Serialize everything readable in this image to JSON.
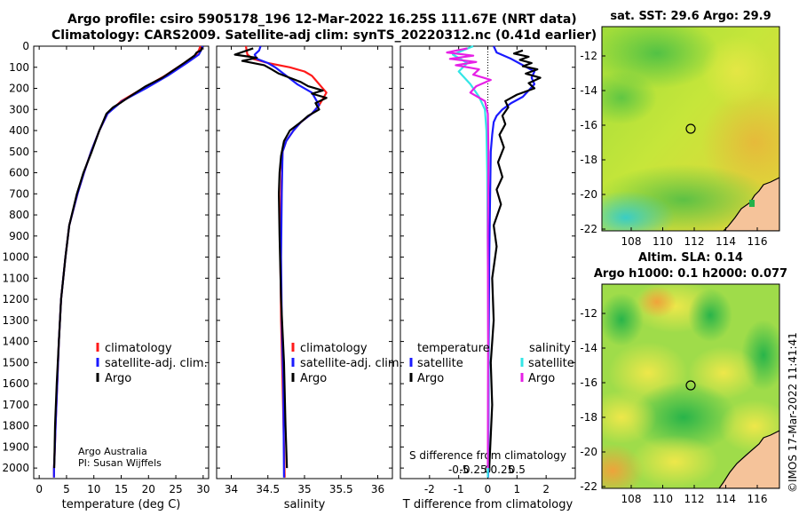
{
  "title_line1": "Argo profile: csiro 5905178_196 12-Mar-2022 16.25S 111.67E (NRT data)",
  "title_line2": "Climatology: CARS2009. Satellite-adj clim: synTS_20220312.nc (0.41d earlier)",
  "side_note": "©IMOS 17-Mar-2022 11:41:41",
  "colors": {
    "climatology": "#ff1a1a",
    "satellite": "#1a1aff",
    "argo": "#000000",
    "sal_satellite": "#33e6e6",
    "sal_argo": "#e620e6"
  },
  "chart_data": [
    {
      "id": "temp",
      "type": "line",
      "xlabel": "temperature (deg C)",
      "xlim": [
        -1,
        31
      ],
      "ylim": [
        2050,
        0
      ],
      "xticks": [
        0,
        5,
        10,
        15,
        20,
        25,
        30
      ],
      "xtick_labels": [
        "0",
        "5",
        "10",
        "15",
        "20",
        "25",
        "30"
      ],
      "yticks": [
        0,
        100,
        200,
        300,
        400,
        500,
        600,
        700,
        800,
        900,
        1000,
        1100,
        1200,
        1300,
        1400,
        1500,
        1600,
        1700,
        1800,
        1900,
        2000
      ],
      "ytick_labels": [
        "0",
        "100",
        "200",
        "300",
        "400",
        "500",
        "600",
        "700",
        "800",
        "900",
        "1000",
        "1100",
        "1200",
        "1300",
        "1400",
        "1500",
        "1600",
        "1700",
        "1800",
        "1900",
        "2000"
      ],
      "legend": [
        "climatology",
        "satellite-adj. clim.",
        "Argo"
      ],
      "annotation": [
        "Argo Australia",
        "PI: Susan Wijffels"
      ],
      "series": [
        {
          "name": "climatology",
          "color_key": "climatology",
          "x": [
            29.5,
            29.2,
            28.7,
            26.5,
            23,
            19,
            15,
            12.5,
            11,
            9.5,
            8.2,
            7,
            5.5,
            4.8,
            4,
            3.6,
            3.3,
            3,
            2.8,
            2.7,
            2.7
          ],
          "y": [
            0,
            20,
            40,
            80,
            140,
            200,
            260,
            320,
            400,
            500,
            600,
            700,
            850,
            1000,
            1200,
            1400,
            1600,
            1800,
            1950,
            2000,
            2045
          ]
        },
        {
          "name": "satellite-adj. clim.",
          "color_key": "satellite",
          "x": [
            29.9,
            29.6,
            29.2,
            27,
            23.5,
            19.5,
            15.2,
            12.5,
            11,
            9.5,
            8.2,
            7,
            5.5,
            4.8,
            4,
            3.6,
            3.3,
            3,
            2.8,
            2.7,
            2.7
          ],
          "y": [
            0,
            20,
            40,
            80,
            140,
            200,
            260,
            320,
            400,
            500,
            600,
            700,
            850,
            1000,
            1200,
            1400,
            1600,
            1800,
            1950,
            2000,
            2045
          ]
        },
        {
          "name": "Argo",
          "color_key": "argo",
          "x": [
            29.8,
            29.6,
            28.8,
            28.4,
            26.5,
            22.5,
            19.5,
            16.5,
            14.8,
            13.5,
            12.3,
            11,
            9.6,
            8.1,
            6.9,
            5.5,
            4.8,
            4,
            3.6,
            3.2,
            2.9,
            2.75
          ],
          "y": [
            5,
            20,
            30,
            45,
            80,
            150,
            190,
            240,
            270,
            290,
            320,
            400,
            500,
            600,
            700,
            850,
            1000,
            1200,
            1400,
            1600,
            1800,
            2000
          ]
        }
      ]
    },
    {
      "id": "sal",
      "type": "line",
      "xlabel": "salinity",
      "xlim": [
        33.8,
        36.2
      ],
      "ylim": [
        2050,
        0
      ],
      "xticks": [
        34,
        34.5,
        35,
        35.5,
        36
      ],
      "xtick_labels": [
        "34",
        "34.5",
        "35",
        "35.5",
        "36"
      ],
      "legend": [
        "climatology",
        "satellite-adj. clim.",
        "Argo"
      ],
      "series": [
        {
          "name": "climatology",
          "color_key": "climatology",
          "x": [
            34.2,
            34.21,
            34.22,
            34.3,
            34.5,
            34.8,
            35.0,
            35.1,
            35.15,
            35.2,
            35.3,
            35.2,
            35.1,
            34.95,
            34.85,
            34.75,
            34.7,
            34.68,
            34.67,
            34.68,
            34.7,
            34.72,
            34.73
          ],
          "y": [
            0,
            20,
            40,
            60,
            80,
            100,
            120,
            140,
            160,
            180,
            220,
            280,
            320,
            360,
            400,
            450,
            500,
            700,
            1000,
            1300,
            1600,
            1900,
            2045
          ]
        },
        {
          "name": "satellite-adj. clim.",
          "color_key": "satellite",
          "x": [
            34.4,
            34.38,
            34.32,
            34.35,
            34.5,
            34.6,
            34.75,
            34.9,
            35.1,
            35.2,
            35.1,
            34.95,
            34.85,
            34.75,
            34.7,
            34.69,
            34.68,
            34.69,
            34.71,
            34.72
          ],
          "y": [
            0,
            20,
            40,
            60,
            80,
            100,
            140,
            180,
            220,
            280,
            320,
            360,
            400,
            450,
            500,
            700,
            1000,
            1300,
            1600,
            2045
          ]
        },
        {
          "name": "Argo",
          "color_key": "argo",
          "x": [
            34.3,
            34.05,
            34.35,
            34.15,
            34.45,
            34.55,
            34.65,
            34.8,
            34.95,
            35.05,
            35.25,
            35.1,
            35.3,
            35.15,
            35.2,
            35.05,
            34.95,
            34.8,
            34.72,
            34.68,
            34.66,
            34.65,
            34.66,
            34.68,
            34.72,
            34.74,
            34.76
          ],
          "y": [
            10,
            40,
            55,
            70,
            90,
            110,
            130,
            150,
            170,
            190,
            210,
            225,
            245,
            270,
            300,
            330,
            360,
            400,
            450,
            520,
            600,
            700,
            900,
            1200,
            1500,
            1800,
            2000
          ]
        }
      ]
    },
    {
      "id": "diff",
      "type": "line",
      "xlabel": "T difference from climatology",
      "xlabel_top": "S difference from climatology",
      "xlim": [
        -3,
        3
      ],
      "ylim": [
        2050,
        0
      ],
      "xticks": [
        -2,
        -1,
        0,
        1,
        2
      ],
      "xtick_labels": [
        "-2",
        "-1",
        "0",
        "1",
        "2"
      ],
      "stick_positions": [
        -1,
        -0.5,
        0,
        0.5,
        1
      ],
      "stick_labels": [
        "-0.5",
        "-0.25",
        "0",
        "0.25",
        "0.5"
      ],
      "legend_titles": [
        "temperature",
        "salinity"
      ],
      "legend_left": [
        "satellite",
        "Argo"
      ],
      "legend_right": [
        "satellite",
        "Argo"
      ],
      "series": [
        {
          "name": "T satellite",
          "color_key": "satellite",
          "x": [
            0.2,
            0.3,
            0.8,
            1.2,
            1.6,
            1.5,
            1.6,
            1.4,
            1.2,
            0.8,
            0.5,
            0.3,
            0.2,
            0.15,
            0.1,
            0.08,
            0.05,
            0.03,
            0.02,
            0.01
          ],
          "y": [
            0,
            30,
            60,
            90,
            120,
            150,
            180,
            210,
            240,
            270,
            300,
            330,
            360,
            420,
            500,
            700,
            1000,
            1400,
            1800,
            2045
          ]
        },
        {
          "name": "T Argo",
          "color_key": "argo",
          "x": [
            1.2,
            0.9,
            1.4,
            1.1,
            1.5,
            1.2,
            1.7,
            1.3,
            1.8,
            1.4,
            1.6,
            1.0,
            0.6,
            0.7,
            0.5,
            0.6,
            0.4,
            0.55,
            0.35,
            0.5,
            0.3,
            0.45,
            0.2,
            0.3,
            0.15,
            0.2,
            0.1,
            0.15,
            0.05
          ],
          "y": [
            20,
            35,
            50,
            65,
            80,
            95,
            110,
            130,
            150,
            175,
            200,
            230,
            260,
            290,
            330,
            370,
            420,
            480,
            550,
            620,
            680,
            750,
            850,
            950,
            1100,
            1300,
            1500,
            1700,
            2000
          ]
        },
        {
          "name": "S satellite",
          "color_key": "sal_satellite",
          "x": [
            -0.5,
            -1.2,
            -0.7,
            -1.0,
            -0.6,
            -0.3,
            -0.1,
            -0.05,
            -0.02,
            0,
            0.02,
            0
          ],
          "y": [
            0,
            40,
            80,
            120,
            180,
            240,
            300,
            400,
            600,
            1000,
            1500,
            2045
          ]
        },
        {
          "name": "S Argo",
          "color_key": "sal_argo",
          "x": [
            -0.7,
            -1.4,
            -0.5,
            -1.3,
            -0.4,
            -1.1,
            -0.3,
            -0.5,
            0.1,
            -0.4,
            -0.6,
            -0.1,
            0,
            0.02,
            0,
            0.01,
            0
          ],
          "y": [
            10,
            30,
            45,
            60,
            75,
            90,
            110,
            135,
            160,
            190,
            220,
            260,
            320,
            500,
            900,
            1400,
            2000
          ]
        }
      ]
    }
  ],
  "maps": [
    {
      "id": "sst",
      "title": "sat. SST: 29.6 Argo: 29.9",
      "xticks": [
        "108",
        "110",
        "112",
        "114",
        "116"
      ],
      "yticks": [
        "-12",
        "-14",
        "-16",
        "-18",
        "-20",
        "-22"
      ],
      "marker": {
        "lon": 111.67,
        "lat": -16.25
      }
    },
    {
      "id": "sla",
      "title_line1": "Altim. SLA: 0.14",
      "title_line2": "Argo h1000: 0.1 h2000: 0.077",
      "xticks": [
        "108",
        "110",
        "112",
        "114",
        "116"
      ],
      "yticks": [
        "-12",
        "-14",
        "-16",
        "-18",
        "-20",
        "-22"
      ],
      "marker": {
        "lon": 111.67,
        "lat": -16.25
      }
    }
  ]
}
